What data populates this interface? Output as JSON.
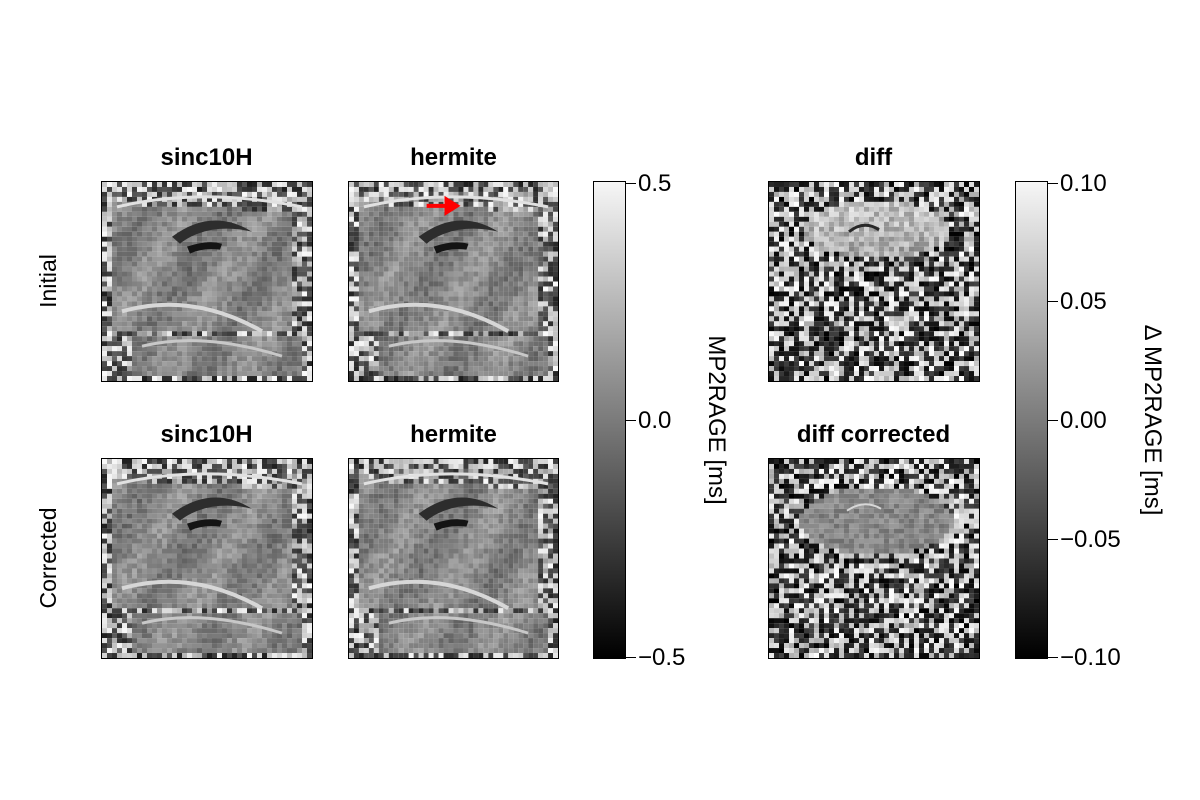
{
  "rows": {
    "top": "Initial",
    "bottom": "Corrected"
  },
  "panels": {
    "top_left": "sinc10H",
    "top_mid": "hermite",
    "top_right": "diff",
    "bottom_left": "sinc10H",
    "bottom_mid": "hermite",
    "bottom_right": "diff corrected"
  },
  "colorbar1": {
    "label": "MP2RAGE [ms]",
    "ticks": [
      "0.5",
      "0.0",
      "−0.5"
    ],
    "range": [
      -0.5,
      0.5
    ]
  },
  "colorbar2": {
    "label": "Δ MP2RAGE [ms]",
    "ticks": [
      "0.10",
      "0.05",
      "0.00",
      "−0.05",
      "−0.10"
    ],
    "range": [
      -0.1,
      0.1
    ]
  },
  "annotation": {
    "arrow_color": "#ff0000"
  },
  "colormap": "grayscale"
}
